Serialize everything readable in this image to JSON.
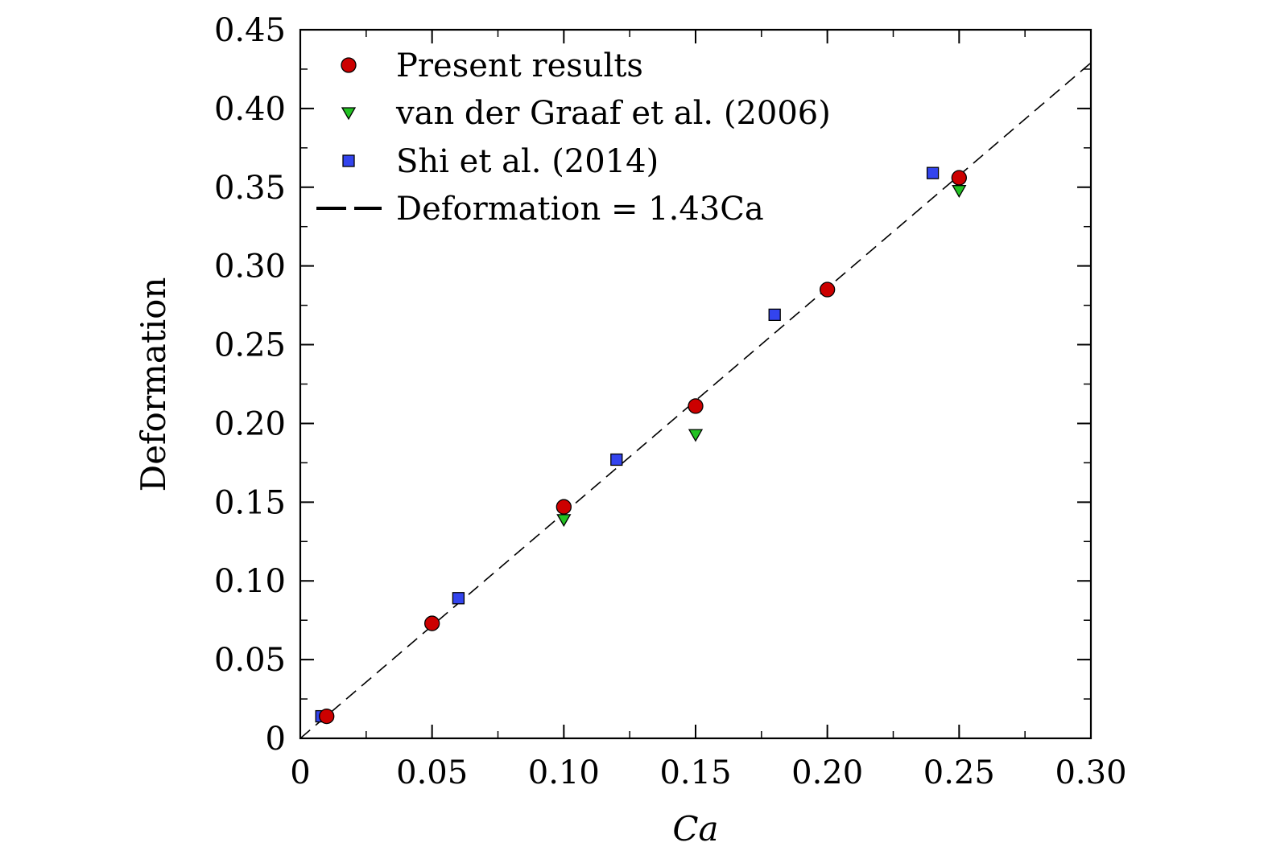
{
  "chart_data": {
    "type": "scatter",
    "xlabel": "Ca",
    "ylabel": "Deformation",
    "xlim": [
      0,
      0.3
    ],
    "ylim": [
      0,
      0.45
    ],
    "x_ticks": [
      {
        "value": 0,
        "label": "0"
      },
      {
        "value": 0.05,
        "label": "0.05"
      },
      {
        "value": 0.1,
        "label": "0.10"
      },
      {
        "value": 0.15,
        "label": "0.15"
      },
      {
        "value": 0.2,
        "label": "0.20"
      },
      {
        "value": 0.25,
        "label": "0.25"
      },
      {
        "value": 0.3,
        "label": "0.30"
      }
    ],
    "y_ticks": [
      {
        "value": 0,
        "label": "0"
      },
      {
        "value": 0.05,
        "label": "0.05"
      },
      {
        "value": 0.1,
        "label": "0.10"
      },
      {
        "value": 0.15,
        "label": "0.15"
      },
      {
        "value": 0.2,
        "label": "0.20"
      },
      {
        "value": 0.25,
        "label": "0.25"
      },
      {
        "value": 0.3,
        "label": "0.30"
      },
      {
        "value": 0.35,
        "label": "0.35"
      },
      {
        "value": 0.4,
        "label": "0.40"
      },
      {
        "value": 0.45,
        "label": "0.45"
      }
    ],
    "x_minor_step": 0.025,
    "y_minor_step": 0.025,
    "grid": false,
    "legend_position": "top-left",
    "series": [
      {
        "name": "Present results",
        "marker": "circle",
        "color": "#cc0000",
        "x": [
          0.01,
          0.05,
          0.1,
          0.15,
          0.2,
          0.25
        ],
        "y": [
          0.014,
          0.073,
          0.147,
          0.211,
          0.285,
          0.356
        ]
      },
      {
        "name": "van der Graaf et al. (2006)",
        "marker": "triangle-down",
        "color": "#22c222",
        "x": [
          0.1,
          0.15,
          0.25
        ],
        "y": [
          0.139,
          0.193,
          0.348
        ]
      },
      {
        "name": "Shi et al. (2014)",
        "marker": "square",
        "color": "#3344ee",
        "x": [
          0.008,
          0.06,
          0.12,
          0.18,
          0.24
        ],
        "y": [
          0.014,
          0.089,
          0.177,
          0.269,
          0.359
        ]
      },
      {
        "name": "Deformation = 1.43Ca",
        "marker": "dashed-line",
        "color": "#000000",
        "slope": 1.43
      }
    ]
  }
}
